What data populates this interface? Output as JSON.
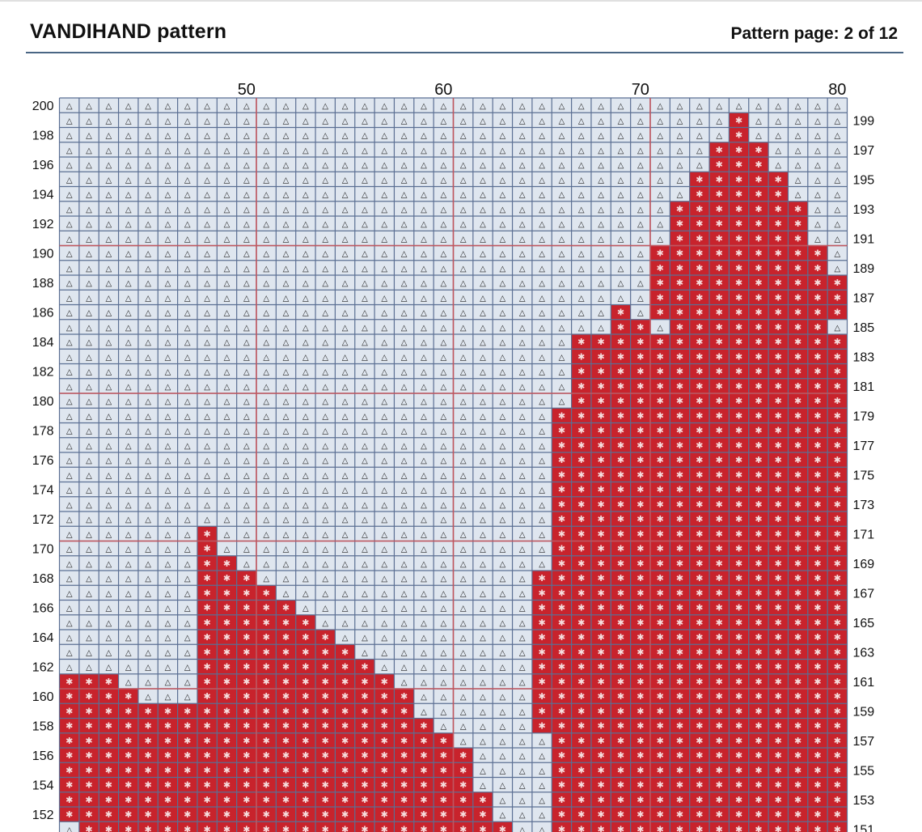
{
  "header": {
    "title": "VANDIHAND pattern",
    "page_label": "Pattern page: 2 of 12"
  },
  "colors": {
    "background_cell": "#dfe6ef",
    "filled_cell": "#c8232c",
    "grid_line": "#5b6f93",
    "decade_line": "#c2565e",
    "text": "#111111"
  },
  "symbols": {
    "background": "△",
    "filled": "✱"
  },
  "grid": {
    "col_start": 41,
    "col_end": 80,
    "row_top": 200,
    "row_bottom": 151,
    "column_labels": [
      "50",
      "60",
      "70",
      "80"
    ],
    "left_row_labels": [
      "200",
      "198",
      "196",
      "194",
      "192",
      "190",
      "188",
      "186",
      "184",
      "182",
      "180",
      "178",
      "176",
      "174",
      "172",
      "170",
      "168",
      "166",
      "164",
      "162",
      "160",
      "158",
      "156",
      "154",
      "152"
    ],
    "right_row_labels": [
      "199",
      "197",
      "195",
      "193",
      "191",
      "189",
      "187",
      "185",
      "183",
      "181",
      "179",
      "177",
      "175",
      "173",
      "171",
      "169",
      "167",
      "165",
      "163",
      "161",
      "159",
      "157",
      "155",
      "153",
      "151"
    ],
    "filled_ranges_by_row": {
      "199": [
        [
          75,
          75
        ]
      ],
      "198": [
        [
          75,
          75
        ]
      ],
      "197": [
        [
          74,
          76
        ]
      ],
      "196": [
        [
          74,
          76
        ]
      ],
      "195": [
        [
          73,
          77
        ]
      ],
      "194": [
        [
          73,
          77
        ]
      ],
      "193": [
        [
          72,
          78
        ]
      ],
      "192": [
        [
          72,
          78
        ]
      ],
      "191": [
        [
          72,
          78
        ]
      ],
      "190": [
        [
          71,
          79
        ]
      ],
      "189": [
        [
          71,
          79
        ]
      ],
      "188": [
        [
          71,
          80
        ]
      ],
      "187": [
        [
          71,
          80
        ]
      ],
      "186": [
        [
          69,
          69
        ],
        [
          71,
          80
        ]
      ],
      "185": [
        [
          69,
          70
        ],
        [
          72,
          79
        ]
      ],
      "184": [
        [
          67,
          80
        ]
      ],
      "183": [
        [
          67,
          80
        ]
      ],
      "182": [
        [
          67,
          80
        ]
      ],
      "181": [
        [
          67,
          80
        ]
      ],
      "180": [
        [
          67,
          80
        ]
      ],
      "179": [
        [
          66,
          80
        ]
      ],
      "178": [
        [
          66,
          80
        ]
      ],
      "177": [
        [
          66,
          80
        ]
      ],
      "176": [
        [
          66,
          80
        ]
      ],
      "175": [
        [
          66,
          80
        ]
      ],
      "174": [
        [
          66,
          80
        ]
      ],
      "173": [
        [
          66,
          80
        ]
      ],
      "172": [
        [
          66,
          80
        ]
      ],
      "171": [
        [
          48,
          48
        ],
        [
          66,
          80
        ]
      ],
      "170": [
        [
          48,
          48
        ],
        [
          66,
          80
        ]
      ],
      "169": [
        [
          48,
          49
        ],
        [
          66,
          80
        ]
      ],
      "168": [
        [
          48,
          50
        ],
        [
          65,
          80
        ]
      ],
      "167": [
        [
          48,
          51
        ],
        [
          65,
          80
        ]
      ],
      "166": [
        [
          48,
          52
        ],
        [
          65,
          80
        ]
      ],
      "165": [
        [
          48,
          53
        ],
        [
          65,
          80
        ]
      ],
      "164": [
        [
          48,
          54
        ],
        [
          65,
          80
        ]
      ],
      "163": [
        [
          48,
          55
        ],
        [
          65,
          80
        ]
      ],
      "162": [
        [
          48,
          56
        ],
        [
          65,
          80
        ]
      ],
      "161": [
        [
          41,
          43
        ],
        [
          48,
          57
        ],
        [
          65,
          80
        ]
      ],
      "160": [
        [
          41,
          44
        ],
        [
          48,
          58
        ],
        [
          65,
          80
        ]
      ],
      "159": [
        [
          41,
          58
        ],
        [
          65,
          80
        ]
      ],
      "158": [
        [
          41,
          59
        ],
        [
          65,
          80
        ]
      ],
      "157": [
        [
          41,
          60
        ],
        [
          66,
          80
        ]
      ],
      "156": [
        [
          41,
          61
        ],
        [
          66,
          80
        ]
      ],
      "155": [
        [
          41,
          61
        ],
        [
          66,
          80
        ]
      ],
      "154": [
        [
          41,
          61
        ],
        [
          66,
          80
        ]
      ],
      "153": [
        [
          41,
          62
        ],
        [
          66,
          80
        ]
      ],
      "152": [
        [
          41,
          62
        ],
        [
          66,
          80
        ]
      ],
      "151": [
        [
          42,
          63
        ],
        [
          66,
          80
        ]
      ]
    }
  }
}
